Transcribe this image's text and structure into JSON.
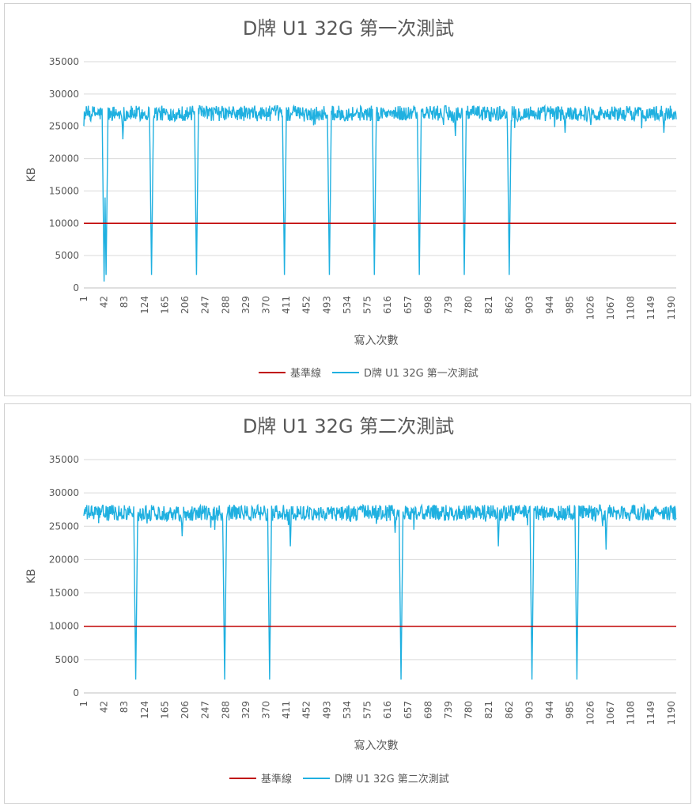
{
  "chart_data": [
    {
      "type": "line",
      "title": "D牌 U1 32G 第一次測試",
      "xlabel": "寫入次數",
      "ylabel": "KB",
      "ylim": [
        0,
        35000
      ],
      "yticks": [
        0,
        5000,
        10000,
        15000,
        20000,
        25000,
        30000,
        35000
      ],
      "yticklabels": [
        "0",
        "5000",
        "10000",
        "15000",
        "20000",
        "25000",
        "30000",
        "35000"
      ],
      "xrange": [
        1,
        1200
      ],
      "xticks": [
        1,
        42,
        83,
        124,
        165,
        206,
        247,
        288,
        329,
        370,
        411,
        452,
        493,
        534,
        575,
        616,
        657,
        698,
        739,
        780,
        821,
        862,
        903,
        944,
        985,
        1026,
        1067,
        1108,
        1149,
        1190
      ],
      "xticklabels": [
        "1",
        "42",
        "83",
        "124",
        "165",
        "206",
        "247",
        "288",
        "329",
        "370",
        "411",
        "452",
        "493",
        "534",
        "575",
        "616",
        "657",
        "698",
        "739",
        "780",
        "821",
        "862",
        "903",
        "944",
        "985",
        "1026",
        "1067",
        "1108",
        "1149",
        "1190"
      ],
      "grid": true,
      "legend_position": "bottom",
      "series": [
        {
          "name": "基準線",
          "color": "#c00000",
          "kind": "constant",
          "value": 10000
        },
        {
          "name": "D牌 U1 32G 第一次測試",
          "color": "#1fb0e0",
          "kind": "throughput",
          "baseline": 27000,
          "noise": 1200,
          "dips": [
            {
              "x": 42,
              "y": 1000
            },
            {
              "x": 46,
              "y": 2000
            },
            {
              "x": 138,
              "y": 2000
            },
            {
              "x": 229,
              "y": 2000
            },
            {
              "x": 407,
              "y": 2000
            },
            {
              "x": 498,
              "y": 2000
            },
            {
              "x": 589,
              "y": 2000
            },
            {
              "x": 680,
              "y": 2000
            },
            {
              "x": 771,
              "y": 2000
            },
            {
              "x": 862,
              "y": 2000
            }
          ],
          "small_dips": [
            {
              "x": 80,
              "y": 23000
            },
            {
              "x": 753,
              "y": 23500
            },
            {
              "x": 975,
              "y": 24000
            },
            {
              "x": 1175,
              "y": 24000
            }
          ]
        }
      ]
    },
    {
      "type": "line",
      "title": "D牌 U1 32G 第二次測試",
      "xlabel": "寫入次數",
      "ylabel": "KB",
      "ylim": [
        0,
        35000
      ],
      "yticks": [
        0,
        5000,
        10000,
        15000,
        20000,
        25000,
        30000,
        35000
      ],
      "yticklabels": [
        "0",
        "5000",
        "10000",
        "15000",
        "20000",
        "25000",
        "30000",
        "35000"
      ],
      "xrange": [
        1,
        1200
      ],
      "xticks": [
        1,
        42,
        83,
        124,
        165,
        206,
        247,
        288,
        329,
        370,
        411,
        452,
        493,
        534,
        575,
        616,
        657,
        698,
        739,
        780,
        821,
        862,
        903,
        944,
        985,
        1026,
        1067,
        1108,
        1149,
        1190
      ],
      "xticklabels": [
        "1",
        "42",
        "83",
        "124",
        "165",
        "206",
        "247",
        "288",
        "329",
        "370",
        "411",
        "452",
        "493",
        "534",
        "575",
        "616",
        "657",
        "698",
        "739",
        "780",
        "821",
        "862",
        "903",
        "944",
        "985",
        "1026",
        "1067",
        "1108",
        "1149",
        "1190"
      ],
      "grid": true,
      "legend_position": "bottom",
      "series": [
        {
          "name": "基準線",
          "color": "#c00000",
          "kind": "constant",
          "value": 10000
        },
        {
          "name": "D牌 U1 32G 第二次測試",
          "color": "#1fb0e0",
          "kind": "throughput",
          "baseline": 27000,
          "noise": 1200,
          "dips": [
            {
              "x": 106,
              "y": 2000
            },
            {
              "x": 286,
              "y": 2000
            },
            {
              "x": 377,
              "y": 2000
            },
            {
              "x": 643,
              "y": 2000
            },
            {
              "x": 908,
              "y": 2000
            },
            {
              "x": 999,
              "y": 2000
            }
          ],
          "small_dips": [
            {
              "x": 200,
              "y": 23500
            },
            {
              "x": 419,
              "y": 22000
            },
            {
              "x": 631,
              "y": 24000
            },
            {
              "x": 840,
              "y": 22000
            },
            {
              "x": 1058,
              "y": 21500
            }
          ]
        }
      ]
    }
  ]
}
